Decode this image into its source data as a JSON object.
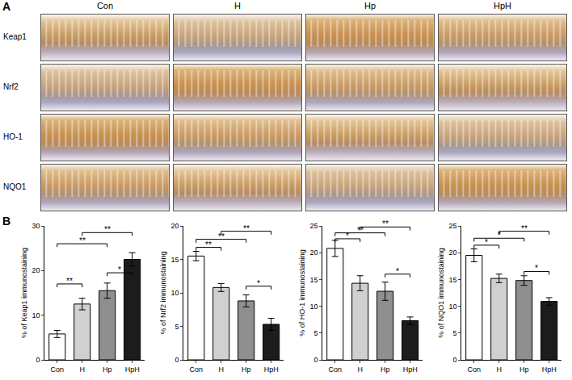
{
  "figure": {
    "panel_a": {
      "label": "A",
      "columns": [
        "Con",
        "H",
        "Hp",
        "HpH"
      ],
      "rows": [
        "Keap1",
        "Nrf2",
        "HO-1",
        "NQO1"
      ]
    },
    "panel_b": {
      "label": "B"
    }
  },
  "chart_data": [
    {
      "type": "bar",
      "y_label": "% of Keap1 immunostaining",
      "categories": [
        "Con",
        "H",
        "Hp",
        "HpH"
      ],
      "values": [
        5.8,
        12.5,
        15.5,
        22.5
      ],
      "errors": [
        0.8,
        1.3,
        1.7,
        1.5
      ],
      "colors": [
        "#ffffff",
        "#d0d0d0",
        "#8f8f8f",
        "#1c1c1c"
      ],
      "ylim": [
        0,
        30
      ],
      "yticks": [
        0,
        10,
        20,
        30
      ],
      "comparisons": [
        {
          "from": "Con",
          "to": "H",
          "y": 17,
          "label": "**"
        },
        {
          "from": "Con",
          "to": "Hp",
          "y": 26,
          "label": "**"
        },
        {
          "from": "H",
          "to": "HpH",
          "y": 28.5,
          "label": "**"
        },
        {
          "from": "Hp",
          "to": "HpH",
          "y": 19.5,
          "label": "*"
        }
      ]
    },
    {
      "type": "bar",
      "y_label": "% of Nrf2 immunostaining",
      "categories": [
        "Con",
        "H",
        "Hp",
        "HpH"
      ],
      "values": [
        15.5,
        10.8,
        8.8,
        5.3
      ],
      "errors": [
        0.7,
        0.6,
        0.9,
        0.9
      ],
      "colors": [
        "#ffffff",
        "#d0d0d0",
        "#8f8f8f",
        "#1c1c1c"
      ],
      "ylim": [
        0,
        20
      ],
      "yticks": [
        0,
        5,
        10,
        15,
        20
      ],
      "comparisons": [
        {
          "from": "Con",
          "to": "H",
          "y": 16.8,
          "label": "**"
        },
        {
          "from": "Con",
          "to": "Hp",
          "y": 18,
          "label": "**"
        },
        {
          "from": "H",
          "to": "HpH",
          "y": 19.2,
          "label": "**"
        },
        {
          "from": "Hp",
          "to": "HpH",
          "y": 11,
          "label": "*"
        }
      ]
    },
    {
      "type": "bar",
      "y_label": "% of HO-1 immunostaining",
      "categories": [
        "Con",
        "H",
        "Hp",
        "HpH"
      ],
      "values": [
        20.8,
        14.3,
        12.8,
        7.3
      ],
      "errors": [
        1.5,
        1.4,
        1.7,
        0.7
      ],
      "colors": [
        "#ffffff",
        "#d0d0d0",
        "#8f8f8f",
        "#1c1c1c"
      ],
      "ylim": [
        0,
        25
      ],
      "yticks": [
        0,
        5,
        10,
        15,
        20,
        25
      ],
      "comparisons": [
        {
          "from": "Con",
          "to": "H",
          "y": 22.6,
          "label": "*"
        },
        {
          "from": "Con",
          "to": "Hp",
          "y": 23.7,
          "label": "**"
        },
        {
          "from": "H",
          "to": "HpH",
          "y": 24.8,
          "label": "**"
        },
        {
          "from": "Hp",
          "to": "HpH",
          "y": 16,
          "label": "*"
        }
      ]
    },
    {
      "type": "bar",
      "y_label": "% of NQO1 immunostaining",
      "categories": [
        "Con",
        "H",
        "Hp",
        "HpH"
      ],
      "values": [
        19.5,
        15.2,
        14.8,
        10.9
      ],
      "errors": [
        1.2,
        0.8,
        0.9,
        0.7
      ],
      "colors": [
        "#ffffff",
        "#d0d0d0",
        "#8f8f8f",
        "#1c1c1c"
      ],
      "ylim": [
        0,
        25
      ],
      "yticks": [
        0,
        5,
        10,
        15,
        20,
        25
      ],
      "comparisons": [
        {
          "from": "Con",
          "to": "H",
          "y": 21.4,
          "label": "*"
        },
        {
          "from": "Con",
          "to": "Hp",
          "y": 22.7,
          "label": "*"
        },
        {
          "from": "H",
          "to": "HpH",
          "y": 24,
          "label": "**"
        },
        {
          "from": "Hp",
          "to": "HpH",
          "y": 16.5,
          "label": "*"
        }
      ]
    }
  ]
}
